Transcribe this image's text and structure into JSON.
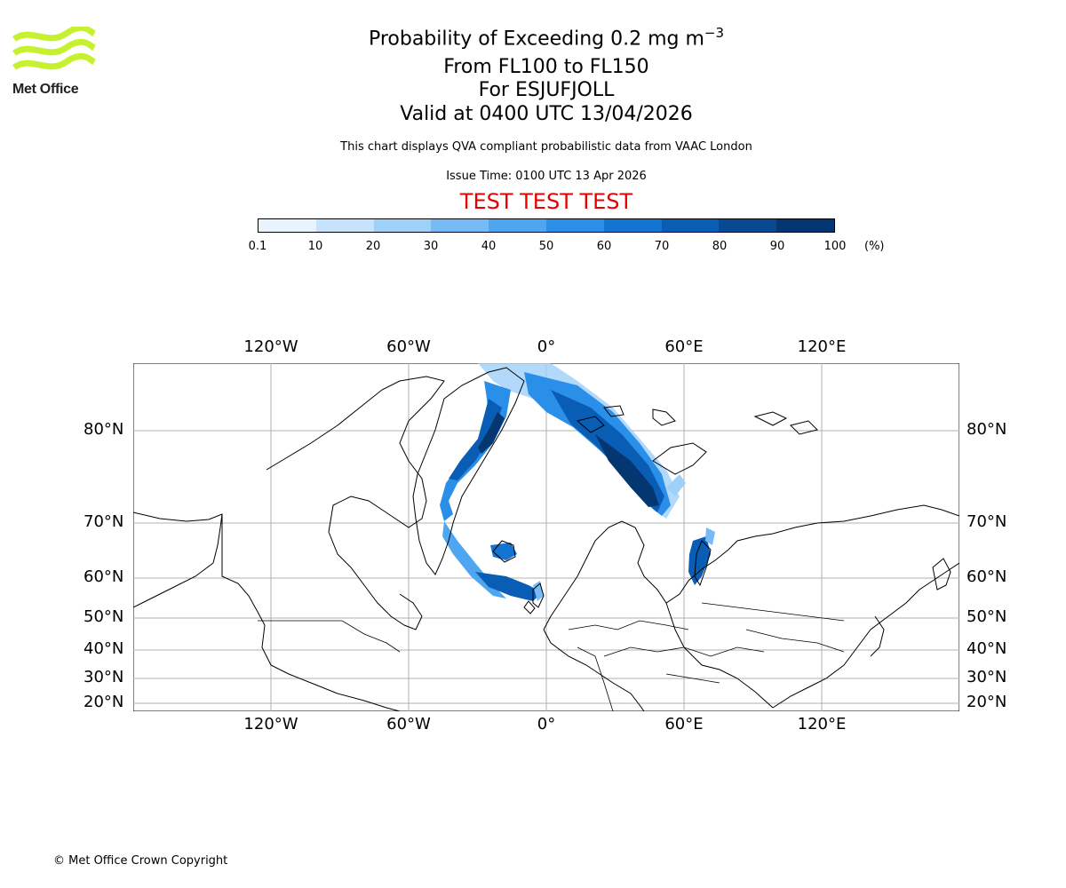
{
  "header": {
    "logo_text": "Met Office",
    "logo_color": "#c6f12f",
    "title_prefix": "Probability of Exceeding 0.2 mg m",
    "title_exp": "−3",
    "levels": "From FL100 to FL150",
    "for": "For ESJUFJOLL",
    "valid": "Valid at 0400 UTC 13/04/2026",
    "description": "This chart displays QVA compliant probabilistic data from VAAC London",
    "issue": "Issue Time: 0100 UTC 13 Apr 2026",
    "test": "TEST TEST TEST",
    "test_color": "#e60000"
  },
  "colorbar": {
    "ticks": [
      "0.1",
      "10",
      "20",
      "30",
      "40",
      "50",
      "60",
      "70",
      "80",
      "90",
      "100"
    ],
    "unit": "(%)",
    "colors": [
      "#e8f3fd",
      "#c6e3fb",
      "#9fd0f8",
      "#76bbf5",
      "#4ea6f1",
      "#2a8fe8",
      "#1474d2",
      "#0a5db5",
      "#064a93",
      "#043672"
    ]
  },
  "map": {
    "lon_labels": [
      "120°W",
      "60°W",
      "0°",
      "60°E",
      "120°E"
    ],
    "lat_labels": [
      "80°N",
      "70°N",
      "60°N",
      "50°N",
      "40°N",
      "30°N",
      "20°N"
    ]
  },
  "footer": {
    "copyright": "© Met Office Crown Copyright"
  }
}
